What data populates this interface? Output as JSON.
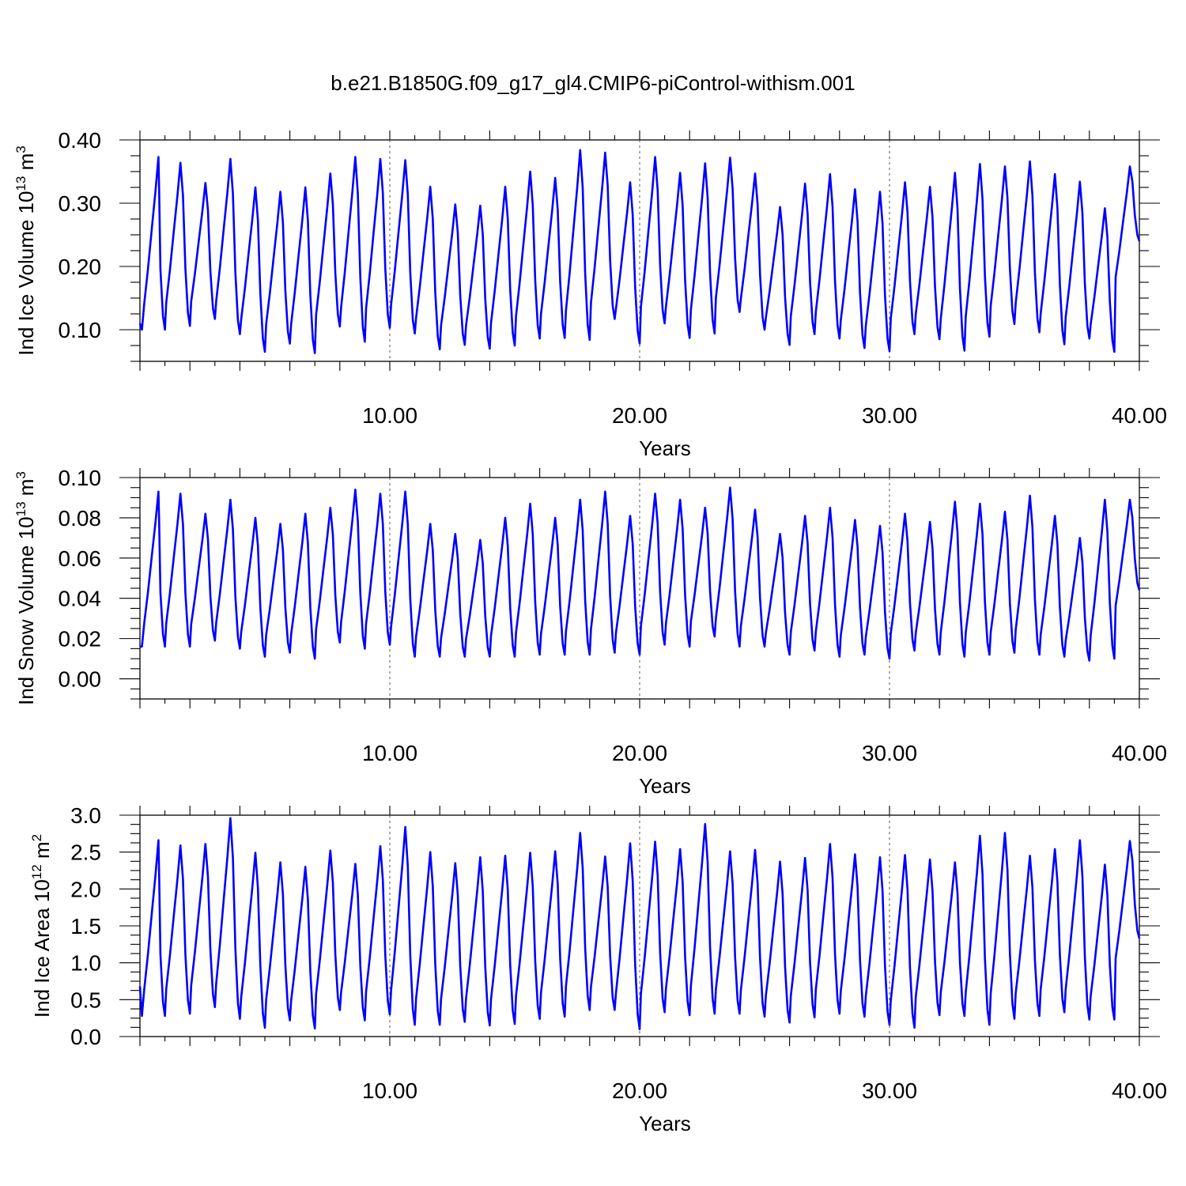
{
  "title": "b.e21.B1850G.f09_g17_gl4.CMIP6-piControl-withism.001",
  "chart_data": [
    {
      "type": "line",
      "ylabel": "Ind Ice Volume 10",
      "ylabel_exp": "13",
      "ylabel_unit": " m",
      "ylabel_unit_exp": "3",
      "xlabel": "Years",
      "xlim": [
        0,
        40
      ],
      "ylim": [
        0.05,
        0.4
      ],
      "yticks": [
        0.1,
        0.2,
        0.3,
        0.4
      ],
      "ytick_labels": [
        "0.10",
        "0.20",
        "0.30",
        "0.40"
      ],
      "xticks": [
        10,
        20,
        30,
        40
      ],
      "xtick_labels": [
        "10.00",
        "20.00",
        "30.00",
        "40.00"
      ],
      "grid_x": [
        10,
        20,
        30
      ],
      "color": "#0000ff",
      "series": [
        {
          "baseline": 0.11,
          "maxima": [
            0.373,
            0.364,
            0.332,
            0.37,
            0.325,
            0.318,
            0.325,
            0.347,
            0.373,
            0.37,
            0.368,
            0.326,
            0.298,
            0.296,
            0.326,
            0.35,
            0.34,
            0.384,
            0.38,
            0.333,
            0.373,
            0.348,
            0.363,
            0.372,
            0.347,
            0.294,
            0.331,
            0.346,
            0.322,
            0.318,
            0.333,
            0.326,
            0.348,
            0.362,
            0.358,
            0.366,
            0.346,
            0.334,
            0.292,
            0.358
          ],
          "minima": [
            0.1,
            0.106,
            0.117,
            0.093,
            0.065,
            0.078,
            0.063,
            0.105,
            0.081,
            0.103,
            0.094,
            0.069,
            0.076,
            0.07,
            0.075,
            0.086,
            0.087,
            0.084,
            0.117,
            0.078,
            0.11,
            0.087,
            0.094,
            0.128,
            0.1,
            0.076,
            0.093,
            0.086,
            0.071,
            0.066,
            0.093,
            0.085,
            0.067,
            0.089,
            0.109,
            0.096,
            0.077,
            0.086,
            0.065,
            0.24
          ]
        }
      ]
    },
    {
      "type": "line",
      "ylabel": "Ind Snow Volume 10",
      "ylabel_exp": "13",
      "ylabel_unit": " m",
      "ylabel_unit_exp": "3",
      "xlabel": "Years",
      "xlim": [
        0,
        40
      ],
      "ylim": [
        -0.01,
        0.1
      ],
      "yticks": [
        0.0,
        0.02,
        0.04,
        0.06,
        0.08,
        0.1
      ],
      "ytick_labels": [
        "0.00",
        "0.02",
        "0.04",
        "0.06",
        "0.08",
        "0.10"
      ],
      "xticks": [
        10,
        20,
        30,
        40
      ],
      "xtick_labels": [
        "10.00",
        "20.00",
        "30.00",
        "40.00"
      ],
      "grid_x": [
        10,
        20,
        30
      ],
      "color": "#0000ff",
      "series": [
        {
          "baseline": 0.016,
          "maxima": [
            0.093,
            0.092,
            0.082,
            0.089,
            0.08,
            0.077,
            0.082,
            0.085,
            0.094,
            0.092,
            0.093,
            0.077,
            0.072,
            0.069,
            0.08,
            0.087,
            0.08,
            0.089,
            0.093,
            0.081,
            0.092,
            0.089,
            0.085,
            0.095,
            0.084,
            0.072,
            0.081,
            0.085,
            0.079,
            0.076,
            0.082,
            0.078,
            0.088,
            0.087,
            0.083,
            0.091,
            0.081,
            0.07,
            0.089,
            0.089
          ],
          "minima": [
            0.016,
            0.016,
            0.019,
            0.015,
            0.011,
            0.013,
            0.01,
            0.018,
            0.015,
            0.017,
            0.011,
            0.011,
            0.011,
            0.011,
            0.011,
            0.012,
            0.012,
            0.012,
            0.013,
            0.012,
            0.017,
            0.016,
            0.021,
            0.016,
            0.016,
            0.012,
            0.014,
            0.011,
            0.012,
            0.01,
            0.014,
            0.012,
            0.011,
            0.012,
            0.013,
            0.012,
            0.011,
            0.009,
            0.01,
            0.044
          ]
        }
      ]
    },
    {
      "type": "line",
      "ylabel": "Ind Ice Area 10",
      "ylabel_exp": "12",
      "ylabel_unit": " m",
      "ylabel_unit_exp": "2",
      "xlabel": "Years",
      "xlim": [
        0,
        40
      ],
      "ylim": [
        0.0,
        3.0
      ],
      "yticks": [
        0.0,
        0.5,
        1.0,
        1.5,
        2.0,
        2.5,
        3.0
      ],
      "ytick_labels": [
        "0.0",
        "0.5",
        "1.0",
        "1.5",
        "2.0",
        "2.5",
        "3.0"
      ],
      "xticks": [
        10,
        20,
        30,
        40
      ],
      "xtick_labels": [
        "10.00",
        "20.00",
        "30.00",
        "40.00"
      ],
      "grid_x": [
        10,
        20,
        30
      ],
      "color": "#0000ff",
      "series": [
        {
          "baseline": 0.68,
          "maxima": [
            2.66,
            2.59,
            2.61,
            2.96,
            2.49,
            2.36,
            2.3,
            2.52,
            2.34,
            2.58,
            2.84,
            2.5,
            2.35,
            2.43,
            2.45,
            2.49,
            2.51,
            2.76,
            2.44,
            2.62,
            2.64,
            2.54,
            2.88,
            2.51,
            2.53,
            2.37,
            2.42,
            2.61,
            2.47,
            2.43,
            2.46,
            2.4,
            2.36,
            2.72,
            2.76,
            2.45,
            2.54,
            2.66,
            2.33,
            2.65
          ],
          "minima": [
            0.28,
            0.31,
            0.4,
            0.24,
            0.12,
            0.22,
            0.11,
            0.36,
            0.22,
            0.3,
            0.16,
            0.16,
            0.2,
            0.15,
            0.17,
            0.24,
            0.27,
            0.36,
            0.36,
            0.1,
            0.33,
            0.29,
            0.31,
            0.31,
            0.27,
            0.19,
            0.26,
            0.31,
            0.27,
            0.16,
            0.12,
            0.29,
            0.28,
            0.16,
            0.24,
            0.28,
            0.33,
            0.23,
            0.23,
            1.33
          ]
        }
      ]
    }
  ]
}
